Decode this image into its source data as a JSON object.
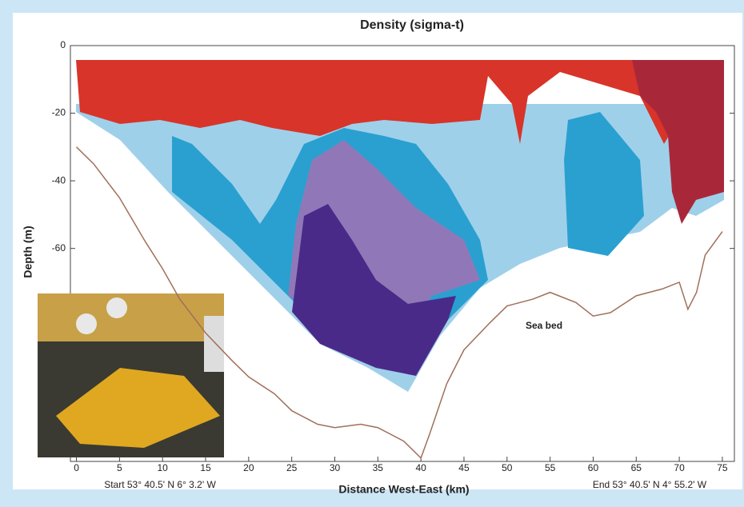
{
  "chart_data": {
    "type": "line",
    "title": "Density (sigma-t)",
    "x_label": "Distance West-East (km)",
    "y_label": "Depth (m)",
    "annotations": [
      "Start 53° 40.5' N  6° 3.2' W",
      "End 53° 40.5' N  4° 55.2' W",
      "Sea bed"
    ],
    "x": [
      0,
      2,
      5,
      8,
      10,
      12,
      15,
      18,
      20,
      23,
      25,
      28,
      30,
      33,
      35,
      38,
      40,
      41,
      43,
      45,
      48,
      50,
      53,
      55,
      58,
      60,
      62,
      65,
      68,
      70,
      71,
      72,
      73,
      75
    ],
    "series": [
      {
        "color": "#a0705a",
        "values": [
          -30,
          -35,
          -45,
          -58,
          -66,
          -75,
          -85,
          -93,
          -98,
          -103,
          -108,
          -112,
          -113,
          -112,
          -113,
          -117,
          -122,
          -115,
          -100,
          -90,
          -82,
          -77,
          -75,
          -73,
          -76,
          -80,
          -79,
          -74,
          -72,
          -70,
          -78,
          -73,
          -62,
          -55
        ]
      }
    ],
    "xlim": [
      -0.7,
      76.4
    ],
    "ylim": [
      -123,
      0
    ],
    "xticks": [
      0,
      5,
      10,
      15,
      20,
      25,
      30,
      35,
      40,
      45,
      50,
      55,
      60,
      65,
      70,
      75
    ],
    "yticks": [
      0,
      -20,
      -40,
      -60
    ],
    "grid": false
  }
}
